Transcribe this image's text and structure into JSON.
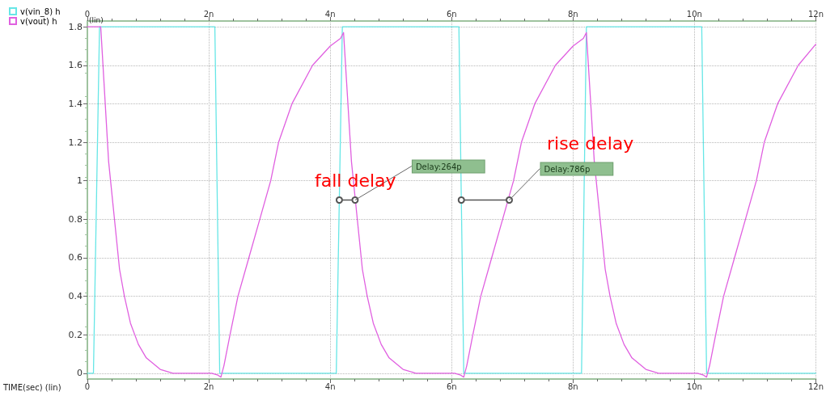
{
  "chart_data": {
    "type": "line",
    "xlabel": "TIME(sec) (lin)",
    "ylabel": "(lin)",
    "xlim": [
      0,
      12
    ],
    "ylim": [
      -0.03,
      1.83
    ],
    "xticks": [
      0,
      {
        "value": 2,
        "label": "2n"
      },
      {
        "value": 4,
        "label": "4n"
      },
      {
        "value": 6,
        "label": "6n"
      },
      {
        "value": 8,
        "label": "8n"
      },
      {
        "value": 10,
        "label": "10n"
      },
      {
        "value": 12,
        "label": "12n"
      }
    ],
    "x2lim": [
      0,
      12
    ],
    "x2ticks": [
      0,
      {
        "value": 2,
        "label": "2n"
      },
      {
        "value": 4,
        "label": "4n"
      },
      {
        "value": 6,
        "label": "6n"
      },
      {
        "value": 8,
        "label": "8n"
      },
      {
        "value": 10,
        "label": "10n"
      },
      {
        "value": 12,
        "label": "12n"
      }
    ],
    "yticks": [
      0,
      0.2,
      0.4,
      0.6,
      0.8,
      1,
      1.2,
      1.4,
      1.6,
      1.8
    ],
    "grid": true,
    "legend": "top left",
    "marker": "none",
    "line_style": "solid",
    "annotations": [
      "fall delay",
      "rise delay",
      {
        "text": "Delay:264p",
        "x": 4.41,
        "y": 0.9
      },
      {
        "text": "Delay:786p",
        "x": 6.95,
        "y": 0.9
      }
    ],
    "series": [
      {
        "name": "v(vin_8) h",
        "color": "#66e6e6",
        "x": [
          0,
          0.1,
          0.2,
          2.1,
          2.18,
          4.1,
          4.2,
          6.12,
          6.2,
          8.14,
          8.22,
          10.12,
          10.2,
          12
        ],
        "values": [
          0,
          0,
          1.8,
          1.8,
          0,
          0,
          1.8,
          1.8,
          0,
          0,
          1.8,
          1.8,
          0,
          0
        ]
      },
      {
        "name": "v(vout) h",
        "color": "#e060e0",
        "x": [
          0,
          0.2,
          0.22,
          0.35,
          0.44,
          0.53,
          0.61,
          0.71,
          0.84,
          0.97,
          1.2,
          1.41,
          2.05,
          2.15,
          2.2,
          2.25,
          2.35,
          2.48,
          2.66,
          2.84,
          3.02,
          3.15,
          3.37,
          3.71,
          4.0,
          4.17,
          4.22,
          4.35,
          4.44,
          4.53,
          4.61,
          4.71,
          4.84,
          4.97,
          5.2,
          5.41,
          6.05,
          6.15,
          6.2,
          6.25,
          6.35,
          6.48,
          6.66,
          6.84,
          7.02,
          7.15,
          7.37,
          7.71,
          8.0,
          8.17,
          8.22,
          8.35,
          8.44,
          8.53,
          8.61,
          8.71,
          8.84,
          8.97,
          9.2,
          9.41,
          10.05,
          10.15,
          10.2,
          10.25,
          10.35,
          10.48,
          10.66,
          10.84,
          11.02,
          11.15,
          11.37,
          11.71,
          12
        ],
        "values": [
          1.8,
          1.8,
          1.8,
          1.1,
          0.82,
          0.54,
          0.4,
          0.26,
          0.15,
          0.08,
          0.02,
          0,
          0,
          -0.01,
          -0.02,
          0.04,
          0.2,
          0.4,
          0.6,
          0.8,
          1.0,
          1.2,
          1.4,
          1.6,
          1.7,
          1.74,
          1.77,
          1.1,
          0.82,
          0.54,
          0.4,
          0.26,
          0.15,
          0.08,
          0.02,
          0,
          0,
          -0.01,
          -0.02,
          0.04,
          0.2,
          0.4,
          0.6,
          0.8,
          1.0,
          1.2,
          1.4,
          1.6,
          1.7,
          1.74,
          1.77,
          1.1,
          0.82,
          0.54,
          0.4,
          0.26,
          0.15,
          0.08,
          0.02,
          0,
          0,
          -0.01,
          -0.02,
          0.04,
          0.2,
          0.4,
          0.6,
          0.8,
          1.0,
          1.2,
          1.4,
          1.6,
          1.71
        ]
      },
      {
        "color": "#555555",
        "marker": "circle",
        "x": [
          4.15,
          4.41
        ],
        "values": [
          0.9,
          0.9
        ]
      },
      {
        "color": "#555555",
        "marker": "circle",
        "x": [
          6.16,
          6.95
        ],
        "values": [
          0.9,
          0.9
        ]
      }
    ]
  }
}
